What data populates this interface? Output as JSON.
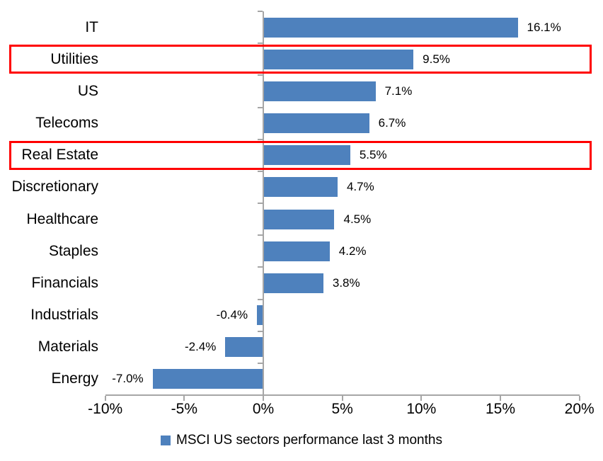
{
  "chart_data": {
    "type": "bar",
    "orientation": "horizontal",
    "title": "",
    "categories": [
      "IT",
      "Utilities",
      "US",
      "Telecoms",
      "Real Estate",
      "Discretionary",
      "Healthcare",
      "Staples",
      "Financials",
      "Industrials",
      "Materials",
      "Energy"
    ],
    "series": [
      {
        "name": "MSCI US sectors performance last 3 months",
        "values": [
          16.1,
          9.5,
          7.1,
          6.7,
          5.5,
          4.7,
          4.5,
          4.2,
          3.8,
          -0.4,
          -2.4,
          -7.0
        ],
        "value_labels": [
          "16.1%",
          "9.5%",
          "7.1%",
          "6.7%",
          "5.5%",
          "4.7%",
          "4.5%",
          "4.2%",
          "3.8%",
          "-0.4%",
          "-2.4%",
          "-7.0%"
        ],
        "color": "#4E81BD"
      }
    ],
    "highlighted_categories": [
      "Utilities",
      "Real Estate"
    ],
    "x_axis": {
      "min": -10,
      "max": 20,
      "tick_values": [
        -10,
        -5,
        0,
        5,
        10,
        15,
        20
      ],
      "tick_labels": [
        "-10%",
        "-5%",
        "0%",
        "5%",
        "10%",
        "15%",
        "20%"
      ]
    },
    "legend": {
      "position": "bottom",
      "label": "MSCI US sectors performance last 3 months",
      "marker_color": "#4E81BD"
    },
    "colors": {
      "bar": "#4E81BD",
      "highlight_border": "#FF0000",
      "axis": "#A6A6A6",
      "text": "#000000"
    },
    "grid": false
  }
}
